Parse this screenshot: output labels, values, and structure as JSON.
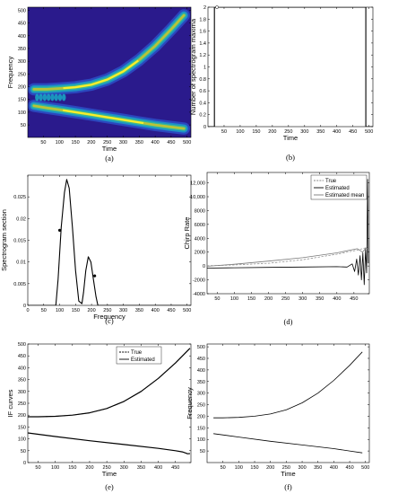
{
  "chart_data": [
    {
      "id": "a",
      "type": "heatmap",
      "caption": "(a)",
      "xlabel": "Time",
      "ylabel": "Frequency",
      "xlim": [
        1,
        512
      ],
      "ylim": [
        1,
        512
      ],
      "xticks": [
        50,
        100,
        150,
        200,
        250,
        300,
        350,
        400,
        450,
        500
      ],
      "yticks": [
        50,
        100,
        150,
        200,
        250,
        300,
        350,
        400,
        450,
        500
      ],
      "ridges": [
        {
          "name": "",
          "x": [
            20,
            60,
            100,
            150,
            200,
            250,
            300,
            350,
            400,
            450,
            490
          ],
          "y": [
            190,
            190,
            193,
            198,
            208,
            228,
            260,
            305,
            360,
            425,
            480
          ]
        },
        {
          "name": "",
          "x": [
            20,
            60,
            100,
            150,
            200,
            250,
            300,
            350,
            400,
            450,
            490
          ],
          "y": [
            125,
            117,
            110,
            100,
            90,
            80,
            70,
            60,
            50,
            42,
            36
          ]
        }
      ],
      "colors": [
        "#2a1a8c",
        "#2b6ee8",
        "#16b3c9",
        "#3cc48c",
        "#c6c42e",
        "#fdf52b"
      ]
    },
    {
      "id": "b",
      "type": "line",
      "caption": "(b)",
      "xlabel": "Time",
      "ylabel": "Number of spectrogram maxima",
      "xlim": [
        0,
        512
      ],
      "ylim": [
        0,
        2
      ],
      "xticks": [
        50,
        100,
        150,
        200,
        250,
        300,
        350,
        400,
        450,
        500
      ],
      "yticks": [
        0,
        0.2,
        0.4,
        0.6,
        0.8,
        1,
        1.2,
        1.4,
        1.6,
        1.8,
        2
      ],
      "ytick_labels": [
        "0",
        "0.2",
        "0.4",
        "0.6",
        "0.8",
        "1",
        "1.2",
        "1.4",
        "1.6",
        "1.8",
        "2"
      ],
      "series": [
        {
          "name": "",
          "x": [
            0,
            20,
            20,
            490,
            490,
            512
          ],
          "y": [
            0,
            0,
            2,
            2,
            0,
            0
          ]
        }
      ],
      "markers": [
        {
          "x": 28,
          "y": 2
        }
      ]
    },
    {
      "id": "c",
      "type": "line",
      "caption": "(c)",
      "xlabel": "Frequency",
      "ylabel": "Spectrogram section",
      "xlim": [
        0,
        512
      ],
      "ylim": [
        0,
        0.03
      ],
      "xticks": [
        0,
        50,
        100,
        150,
        200,
        250,
        300,
        350,
        400,
        450,
        500
      ],
      "yticks": [
        0,
        0.005,
        0.01,
        0.015,
        0.02,
        0.025
      ],
      "ytick_labels": [
        "0",
        "0.005",
        "0.01",
        "0.015",
        "0.02",
        "0.025"
      ],
      "series": [
        {
          "name": "",
          "x": [
            0,
            88,
            95,
            105,
            115,
            122,
            130,
            140,
            150,
            160,
            170,
            175,
            182,
            190,
            198,
            206,
            214,
            220,
            512
          ],
          "y": [
            0,
            0,
            0.006,
            0.018,
            0.026,
            0.029,
            0.027,
            0.018,
            0.008,
            0.001,
            0.0004,
            0.003,
            0.008,
            0.0112,
            0.01,
            0.006,
            0.002,
            0,
            0
          ]
        }
      ],
      "markers": [
        {
          "x": 100,
          "y": 0.0173
        },
        {
          "x": 210,
          "y": 0.0068
        }
      ]
    },
    {
      "id": "d",
      "type": "line",
      "caption": "(d)",
      "xlabel": "",
      "ylabel": "Chirp Rate",
      "xlim": [
        20,
        495
      ],
      "ylim": [
        -4000,
        13500
      ],
      "xticks": [
        50,
        100,
        150,
        200,
        250,
        300,
        350,
        400,
        450
      ],
      "yticks": [
        -4000,
        -2000,
        0,
        2000,
        4000,
        6000,
        8000,
        10000,
        12000
      ],
      "ytick_labels": [
        "-4000",
        "-2000",
        "0",
        "2000",
        "4000",
        "6000",
        "8000",
        "10,000",
        "12,000"
      ],
      "legend": [
        "True",
        "Estimated",
        "Estimated mean"
      ],
      "legend_position": "top-right",
      "series": [
        {
          "name": "True",
          "style": "dashed",
          "color": "#888888",
          "x": [
            20,
            100,
            200,
            300,
            400,
            460,
            490
          ],
          "y": [
            30,
            150,
            400,
            900,
            1700,
            2300,
            2700
          ]
        },
        {
          "name": "Estimated",
          "style": "solid",
          "color": "#000000",
          "x": [
            20,
            100,
            200,
            300,
            400,
            430,
            445,
            452,
            458,
            463,
            468,
            472,
            476,
            480,
            484,
            487,
            490,
            492
          ],
          "y": [
            -300,
            -250,
            -200,
            -150,
            -100,
            -150,
            300,
            -800,
            1000,
            -1300,
            1500,
            -2000,
            1900,
            -2700,
            2400,
            -1000,
            12500,
            400
          ]
        },
        {
          "name": "Estimated mean",
          "style": "solid",
          "color": "#7a7a7a",
          "x": [
            20,
            100,
            200,
            300,
            400,
            460,
            475,
            485,
            492
          ],
          "y": [
            -50,
            250,
            700,
            1200,
            1900,
            2500,
            2000,
            2600,
            2400
          ]
        }
      ]
    },
    {
      "id": "e",
      "type": "line",
      "caption": "(e)",
      "xlabel": "Time",
      "ylabel": "IF curves",
      "xlim": [
        20,
        495
      ],
      "ylim": [
        0,
        500
      ],
      "xticks": [
        50,
        100,
        150,
        200,
        250,
        300,
        350,
        400,
        450
      ],
      "yticks": [
        0,
        50,
        100,
        150,
        200,
        250,
        300,
        350,
        400,
        450,
        500
      ],
      "legend": [
        "True",
        "Estimated"
      ],
      "legend_position": "top-center",
      "series": [
        {
          "name": "True",
          "style": "dashed",
          "x": [
            20,
            50,
            100,
            150,
            200,
            250,
            300,
            350,
            400,
            450,
            492
          ],
          "y": [
            193,
            193,
            195,
            200,
            210,
            228,
            258,
            300,
            355,
            420,
            482
          ]
        },
        {
          "name": "Estimated",
          "style": "solid",
          "x": [
            20,
            50,
            100,
            150,
            200,
            250,
            300,
            350,
            400,
            450,
            492
          ],
          "y": [
            193,
            193,
            195,
            200,
            210,
            228,
            258,
            300,
            355,
            420,
            482
          ]
        },
        {
          "name": "",
          "style": "solid",
          "x": [
            20,
            100,
            200,
            300,
            400,
            450,
            470,
            480,
            485,
            492
          ],
          "y": [
            125,
            110,
            92,
            76,
            60,
            50,
            45,
            40,
            37,
            38
          ]
        }
      ]
    },
    {
      "id": "f",
      "type": "line",
      "caption": "(f)",
      "xlabel": "Time",
      "ylabel": "Frequency",
      "xlim": [
        0,
        512
      ],
      "ylim": [
        0,
        512
      ],
      "xticks": [
        50,
        100,
        150,
        200,
        250,
        300,
        350,
        400,
        450,
        500
      ],
      "yticks": [
        50,
        100,
        150,
        200,
        250,
        300,
        350,
        400,
        450,
        500
      ],
      "series": [
        {
          "name": "",
          "style": "solid",
          "x": [
            20,
            50,
            100,
            150,
            200,
            250,
            300,
            350,
            400,
            450,
            490
          ],
          "y": [
            193,
            193,
            195,
            200,
            210,
            228,
            258,
            300,
            355,
            420,
            478
          ]
        },
        {
          "name": "",
          "style": "solid",
          "x": [
            20,
            100,
            200,
            300,
            400,
            450,
            490
          ],
          "y": [
            125,
            110,
            92,
            76,
            60,
            50,
            42
          ]
        }
      ]
    }
  ]
}
